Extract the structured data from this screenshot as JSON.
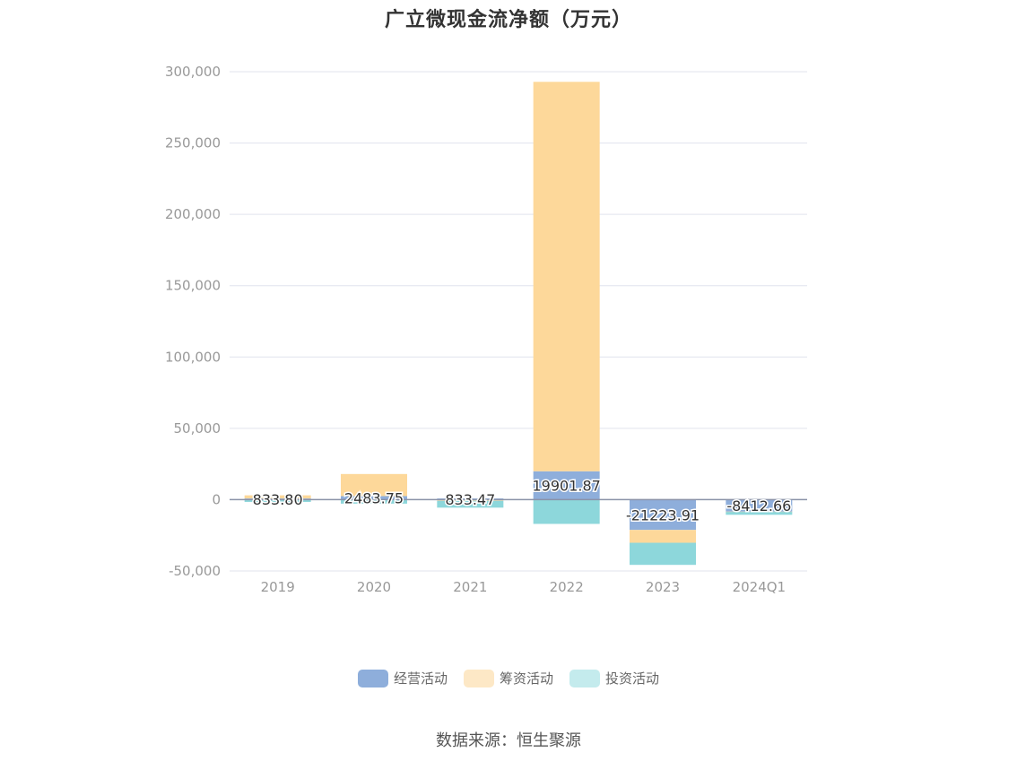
{
  "chart_data": {
    "type": "bar",
    "stacked": true,
    "title": "广立微现金流净额（万元）",
    "categories": [
      "2019",
      "2020",
      "2021",
      "2022",
      "2023",
      "2024Q1"
    ],
    "series": [
      {
        "name": "经营活动",
        "color": "#8eaedb",
        "values": [
          833.8,
          2483.75,
          833.47,
          19901.87,
          -21223.91,
          -8412.66
        ]
      },
      {
        "name": "筹资活动",
        "color": "#fdd89a",
        "values": [
          2200,
          15500,
          -800,
          273000,
          -9000,
          -200
        ]
      },
      {
        "name": "投资活动",
        "color": "#8dd7db",
        "values": [
          -1600,
          -2800,
          -4800,
          -17000,
          -15500,
          -2000
        ]
      }
    ],
    "data_labels": [
      "833.80",
      "2483.75",
      "833.47",
      "19901.87",
      "-21223.91",
      "-8412.66"
    ],
    "y_ticks": [
      "300,000",
      "250,000",
      "200,000",
      "150,000",
      "100,000",
      "50,000",
      "0",
      "-50,000"
    ],
    "ylim": [
      -50000,
      300000
    ],
    "grid": true,
    "legend_position": "bottom"
  },
  "source_text": "数据来源：恒生聚源"
}
